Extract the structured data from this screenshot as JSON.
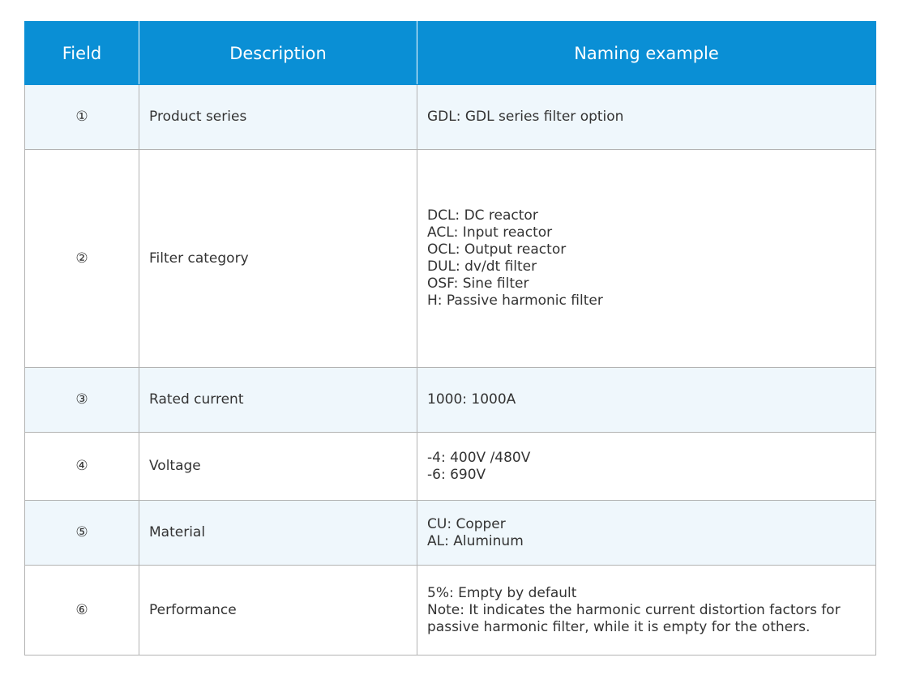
{
  "table": {
    "headers": {
      "field": "Field",
      "description": "Description",
      "example": "Naming example"
    },
    "rows": [
      {
        "field": "①",
        "description": "Product series",
        "examples": [
          "GDL: GDL series filter option"
        ]
      },
      {
        "field": "②",
        "description": "Filter category",
        "examples": [
          "DCL: DC reactor",
          "ACL: Input reactor",
          "OCL: Output reactor",
          "DUL: dv/dt filter",
          "OSF: Sine filter",
          "H: Passive harmonic filter"
        ]
      },
      {
        "field": "③",
        "description": "Rated current",
        "examples": [
          "1000: 1000A"
        ]
      },
      {
        "field": "④",
        "description": "Voltage",
        "examples": [
          "-4: 400V /480V",
          "-6: 690V"
        ]
      },
      {
        "field": "⑤",
        "description": "Material",
        "examples": [
          "CU: Copper",
          "AL: Aluminum"
        ]
      },
      {
        "field": "⑥",
        "description": "Performance",
        "examples": [
          "5%: Empty by default",
          "Note: It indicates the harmonic current distortion factors for passive harmonic filter, while it is empty for the others."
        ]
      }
    ]
  },
  "colors": {
    "header_bg": "#0a8fd5",
    "header_text": "#ffffff",
    "row_alt_bg": "#eff7fc",
    "border": "#b3b3b3"
  }
}
